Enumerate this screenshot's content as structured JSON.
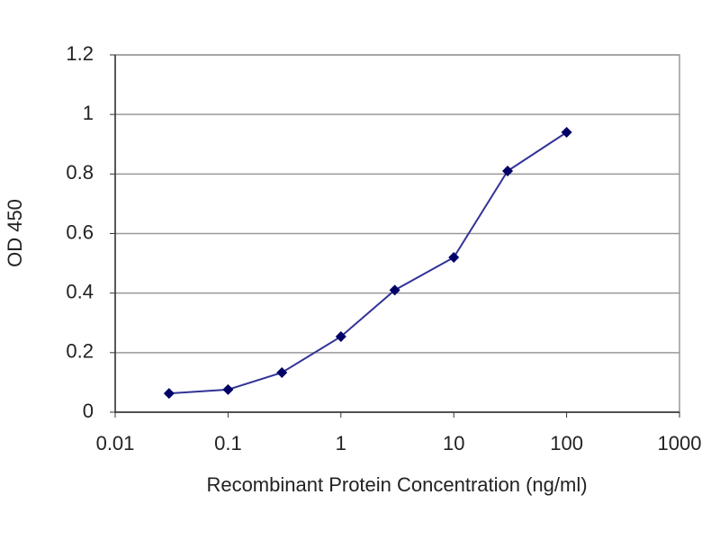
{
  "chart_data": {
    "type": "line",
    "x_label": "Recombinant Protein Concentration (ng/ml)",
    "y_label": "OD 450",
    "x": [
      0.03,
      0.1,
      0.3,
      1,
      3,
      10,
      30,
      100
    ],
    "series": [
      {
        "color": "#333399",
        "marker_color": "#000066",
        "values": [
          0.063,
          0.076,
          0.133,
          0.254,
          0.41,
          0.52,
          0.81,
          0.94
        ]
      }
    ],
    "xscale": "log",
    "xlim": [
      0.01,
      1000
    ],
    "xticks": [
      0.01,
      0.1,
      1,
      10,
      100,
      1000
    ],
    "ylim": [
      0,
      1.2
    ],
    "yticks": [
      0,
      0.2,
      0.4,
      0.6,
      0.8,
      1,
      1.2
    ],
    "grid": true
  }
}
